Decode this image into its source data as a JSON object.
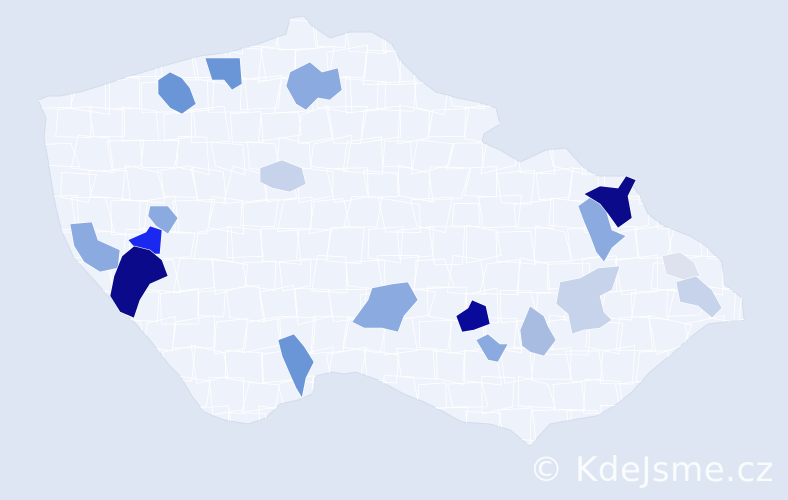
{
  "map": {
    "background_color": "#dde6f2",
    "base_fill": "#eef2fa",
    "border_color": "#d3dcec",
    "highlighted_districts": [
      {
        "color": "#6a96d8"
      },
      {
        "color": "#6a96d8"
      },
      {
        "color": "#8aaae0"
      },
      {
        "color": "#c7d3ea"
      },
      {
        "color": "#8aaae0"
      },
      {
        "color": "#8aaae0"
      },
      {
        "color": "#1a28f0"
      },
      {
        "color": "#0a0a8a"
      },
      {
        "color": "#6a96d8"
      },
      {
        "color": "#8aaae0"
      },
      {
        "color": "#0a0a9a"
      },
      {
        "color": "#8aaae0"
      },
      {
        "color": "#a8bce2"
      },
      {
        "color": "#c7d3ea"
      },
      {
        "color": "#8aaae0"
      },
      {
        "color": "#0a0a8a"
      },
      {
        "color": "#dde2ee"
      },
      {
        "color": "#c7d3ea"
      }
    ]
  },
  "watermark": "© KdeJsme.cz"
}
